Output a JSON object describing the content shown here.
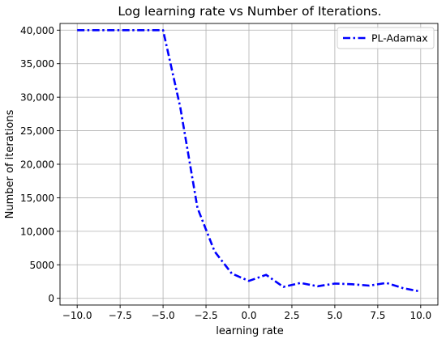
{
  "chart_data": {
    "type": "line",
    "title": "Log learning rate vs Number of Iterations.",
    "xlabel": "learning rate",
    "ylabel": "Number of iterations",
    "xlim": [
      -11,
      11
    ],
    "ylim": [
      -1000,
      41000
    ],
    "xticks": [
      -10,
      -7.5,
      -5,
      -2.5,
      0,
      2.5,
      5,
      7.5,
      10
    ],
    "xtick_labels": [
      "−10.0",
      "−7.5",
      "−5.0",
      "−2.5",
      "0.0",
      "2.5",
      "5.0",
      "7.5",
      "10.0"
    ],
    "yticks": [
      0,
      5000,
      10000,
      15000,
      20000,
      25000,
      30000,
      35000,
      40000
    ],
    "ytick_labels": [
      "0",
      "5000",
      "10,000",
      "15,000",
      "20,000",
      "25,000",
      "30,000",
      "35,000",
      "40,000"
    ],
    "grid": true,
    "legend_position": "top-right",
    "series": [
      {
        "name": "PL-Adamax",
        "color": "#0000ff",
        "line_style": "dash-dot",
        "x": [
          -10,
          -9,
          -8,
          -7,
          -6,
          -5,
          -4,
          -3,
          -2,
          -1,
          0,
          1,
          2,
          3,
          4,
          5,
          6,
          7,
          8,
          9,
          10
        ],
        "y": [
          40000,
          40000,
          40000,
          40000,
          40000,
          40000,
          28500,
          13500,
          7000,
          3700,
          2600,
          3500,
          1700,
          2300,
          1800,
          2200,
          2100,
          1900,
          2300,
          1500,
          1000
        ]
      }
    ]
  }
}
